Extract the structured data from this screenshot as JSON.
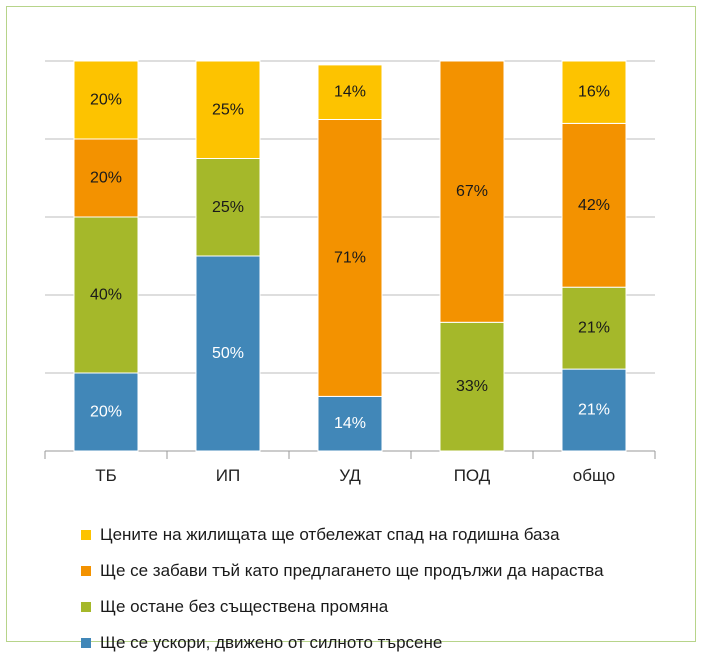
{
  "chart_data": {
    "type": "bar",
    "stacked": true,
    "percent": true,
    "categories": [
      "ТБ",
      "ИП",
      "УД",
      "ПОД",
      "общо"
    ],
    "series": [
      {
        "name": "Ще се ускори, движено от силното търсене",
        "color": "#4187b8",
        "label_color": "#ffffff",
        "values": [
          20,
          50,
          14,
          0,
          21
        ]
      },
      {
        "name": "Ще остане без съществена промяна",
        "color": "#a5b82a",
        "label_color": "#1a1a1a",
        "values": [
          40,
          25,
          0,
          33,
          21
        ]
      },
      {
        "name": "Ще се забави тъй като предлагането ще продължи да нараства",
        "color": "#f39200",
        "label_color": "#1a1a1a",
        "values": [
          20,
          0,
          71,
          67,
          42
        ]
      },
      {
        "name": "Цените на жилищата ще отбележат спад на годишна база",
        "color": "#fdc300",
        "label_color": "#1a1a1a",
        "values": [
          20,
          25,
          14,
          0,
          16
        ]
      }
    ],
    "ylim": [
      0,
      100
    ],
    "grid": true,
    "legend_position": "bottom"
  }
}
